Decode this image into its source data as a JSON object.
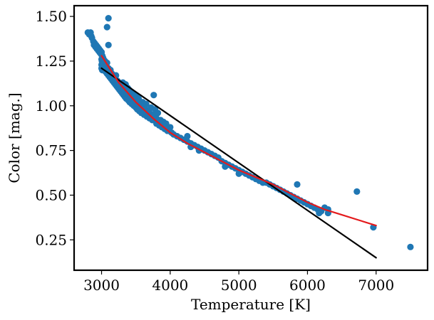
{
  "chart_data": {
    "type": "scatter",
    "xlabel": "Temperature [K]",
    "ylabel": "Color [mag.]",
    "xlim": [
      2600,
      7750
    ],
    "ylim": [
      0.08,
      1.56
    ],
    "xticks": [
      3000,
      4000,
      5000,
      6000,
      7000
    ],
    "xtick_labels": [
      "3000",
      "4000",
      "5000",
      "6000",
      "7000"
    ],
    "yticks": [
      0.25,
      0.5,
      0.75,
      1.0,
      1.25,
      1.5
    ],
    "ytick_labels": [
      "0.25",
      "0.50",
      "0.75",
      "1.00",
      "1.25",
      "1.50"
    ],
    "grid": false,
    "colors": {
      "points": "#1f77b4",
      "linear_fit": "#000000",
      "curve_fit": "#e41a1c"
    },
    "series": [
      {
        "type": "scatter",
        "points": [
          [
            2800,
            1.41
          ],
          [
            2820,
            1.4
          ],
          [
            2840,
            1.41
          ],
          [
            2850,
            1.39
          ],
          [
            2860,
            1.38
          ],
          [
            2880,
            1.36
          ],
          [
            2890,
            1.34
          ],
          [
            2900,
            1.35
          ],
          [
            2910,
            1.33
          ],
          [
            2920,
            1.34
          ],
          [
            2930,
            1.32
          ],
          [
            2940,
            1.33
          ],
          [
            2950,
            1.31
          ],
          [
            2960,
            1.32
          ],
          [
            2970,
            1.3
          ],
          [
            2980,
            1.31
          ],
          [
            2990,
            1.29
          ],
          [
            3000,
            1.3
          ],
          [
            3000,
            1.26
          ],
          [
            3000,
            1.23
          ],
          [
            3000,
            1.21
          ],
          [
            3005,
            1.25
          ],
          [
            3010,
            1.28
          ],
          [
            3010,
            1.2
          ],
          [
            3020,
            1.27
          ],
          [
            3020,
            1.24
          ],
          [
            3030,
            1.22
          ],
          [
            3030,
            1.26
          ],
          [
            3040,
            1.2
          ],
          [
            3050,
            1.25
          ],
          [
            3050,
            1.21
          ],
          [
            3060,
            1.23
          ],
          [
            3060,
            1.19
          ],
          [
            3070,
            1.22
          ],
          [
            3080,
            1.18
          ],
          [
            3080,
            1.24
          ],
          [
            3090,
            1.2
          ],
          [
            3100,
            1.21
          ],
          [
            3100,
            1.17
          ],
          [
            3110,
            1.19
          ],
          [
            3120,
            1.16
          ],
          [
            3130,
            1.2
          ],
          [
            3140,
            1.15
          ],
          [
            3150,
            1.18
          ],
          [
            3160,
            1.14
          ],
          [
            3170,
            1.17
          ],
          [
            3180,
            1.13
          ],
          [
            3190,
            1.16
          ],
          [
            3200,
            1.12
          ],
          [
            3200,
            1.15
          ],
          [
            3210,
            1.17
          ],
          [
            3220,
            1.11
          ],
          [
            3230,
            1.14
          ],
          [
            3240,
            1.1
          ],
          [
            3250,
            1.13
          ],
          [
            3260,
            1.09
          ],
          [
            3270,
            1.12
          ],
          [
            3280,
            1.08
          ],
          [
            3290,
            1.11
          ],
          [
            3300,
            1.07
          ],
          [
            3300,
            1.1
          ],
          [
            3310,
            1.13
          ],
          [
            3320,
            1.06
          ],
          [
            3330,
            1.09
          ],
          [
            3340,
            1.05
          ],
          [
            3350,
            1.08
          ],
          [
            3350,
            1.12
          ],
          [
            3360,
            1.04
          ],
          [
            3370,
            1.07
          ],
          [
            3380,
            1.1
          ],
          [
            3390,
            1.03
          ],
          [
            3400,
            1.06
          ],
          [
            3400,
            1.09
          ],
          [
            3410,
            1.02
          ],
          [
            3420,
            1.05
          ],
          [
            3430,
            1.08
          ],
          [
            3440,
            1.01
          ],
          [
            3450,
            1.04
          ],
          [
            3460,
            1.07
          ],
          [
            3470,
            1.0
          ],
          [
            3480,
            1.03
          ],
          [
            3490,
            1.06
          ],
          [
            3500,
            0.99
          ],
          [
            3500,
            1.02
          ],
          [
            3510,
            1.05
          ],
          [
            3520,
            0.98
          ],
          [
            3530,
            1.01
          ],
          [
            3540,
            1.04
          ],
          [
            3550,
            0.97
          ],
          [
            3560,
            1.0
          ],
          [
            3580,
            0.96
          ],
          [
            3600,
            0.99
          ],
          [
            3600,
            1.02
          ],
          [
            3620,
            0.95
          ],
          [
            3640,
            0.98
          ],
          [
            3650,
            1.01
          ],
          [
            3660,
            0.94
          ],
          [
            3680,
            0.97
          ],
          [
            3700,
            0.93
          ],
          [
            3700,
            0.96
          ],
          [
            3720,
            0.99
          ],
          [
            3740,
            0.92
          ],
          [
            3760,
            0.95
          ],
          [
            3780,
            0.98
          ],
          [
            3760,
            1.06
          ],
          [
            3800,
            0.9
          ],
          [
            3800,
            0.93
          ],
          [
            3820,
            0.96
          ],
          [
            3840,
            0.89
          ],
          [
            3860,
            0.92
          ],
          [
            3880,
            0.88
          ],
          [
            3900,
            0.91
          ],
          [
            3920,
            0.87
          ],
          [
            3940,
            0.9
          ],
          [
            3960,
            0.86
          ],
          [
            4000,
            0.88
          ],
          [
            4020,
            0.85
          ],
          [
            4050,
            0.84
          ],
          [
            4100,
            0.83
          ],
          [
            4150,
            0.82
          ],
          [
            4200,
            0.81
          ],
          [
            4250,
            0.8
          ],
          [
            4250,
            0.83
          ],
          [
            4300,
            0.79
          ],
          [
            4300,
            0.77
          ],
          [
            4350,
            0.78
          ],
          [
            4400,
            0.77
          ],
          [
            4420,
            0.75
          ],
          [
            4450,
            0.76
          ],
          [
            4500,
            0.75
          ],
          [
            4550,
            0.74
          ],
          [
            4600,
            0.73
          ],
          [
            4650,
            0.72
          ],
          [
            4700,
            0.71
          ],
          [
            4750,
            0.69
          ],
          [
            4800,
            0.68
          ],
          [
            4800,
            0.66
          ],
          [
            4850,
            0.67
          ],
          [
            4900,
            0.66
          ],
          [
            4950,
            0.65
          ],
          [
            5000,
            0.64
          ],
          [
            5000,
            0.62
          ],
          [
            5050,
            0.63
          ],
          [
            5100,
            0.62
          ],
          [
            5150,
            0.61
          ],
          [
            5200,
            0.6
          ],
          [
            5250,
            0.59
          ],
          [
            5300,
            0.58
          ],
          [
            5350,
            0.57
          ],
          [
            5400,
            0.57
          ],
          [
            5450,
            0.56
          ],
          [
            5500,
            0.55
          ],
          [
            5550,
            0.54
          ],
          [
            5600,
            0.53
          ],
          [
            5650,
            0.52
          ],
          [
            5700,
            0.51
          ],
          [
            5750,
            0.5
          ],
          [
            5800,
            0.49
          ],
          [
            5850,
            0.48
          ],
          [
            5850,
            0.56
          ],
          [
            5900,
            0.47
          ],
          [
            5950,
            0.46
          ],
          [
            6000,
            0.45
          ],
          [
            6050,
            0.44
          ],
          [
            6100,
            0.43
          ],
          [
            6150,
            0.42
          ],
          [
            6170,
            0.4
          ],
          [
            6200,
            0.41
          ],
          [
            6250,
            0.43
          ],
          [
            6300,
            0.42
          ],
          [
            6300,
            0.4
          ],
          [
            3080,
            1.44
          ],
          [
            3100,
            1.49
          ],
          [
            3100,
            1.34
          ],
          [
            6720,
            0.52
          ],
          [
            6960,
            0.32
          ],
          [
            7500,
            0.21
          ]
        ]
      },
      {
        "type": "line",
        "points": [
          [
            3000,
            1.21
          ],
          [
            7000,
            0.15
          ]
        ]
      },
      {
        "type": "line",
        "points": [
          [
            3000,
            1.28
          ],
          [
            3250,
            1.13
          ],
          [
            3500,
            1.02
          ],
          [
            3750,
            0.93
          ],
          [
            4000,
            0.85
          ],
          [
            4250,
            0.79
          ],
          [
            4500,
            0.74
          ],
          [
            4750,
            0.69
          ],
          [
            5000,
            0.64
          ],
          [
            5250,
            0.6
          ],
          [
            5500,
            0.56
          ],
          [
            5750,
            0.51
          ],
          [
            6000,
            0.46
          ],
          [
            6250,
            0.42
          ],
          [
            6500,
            0.39
          ],
          [
            6750,
            0.36
          ],
          [
            7000,
            0.33
          ]
        ]
      }
    ]
  }
}
